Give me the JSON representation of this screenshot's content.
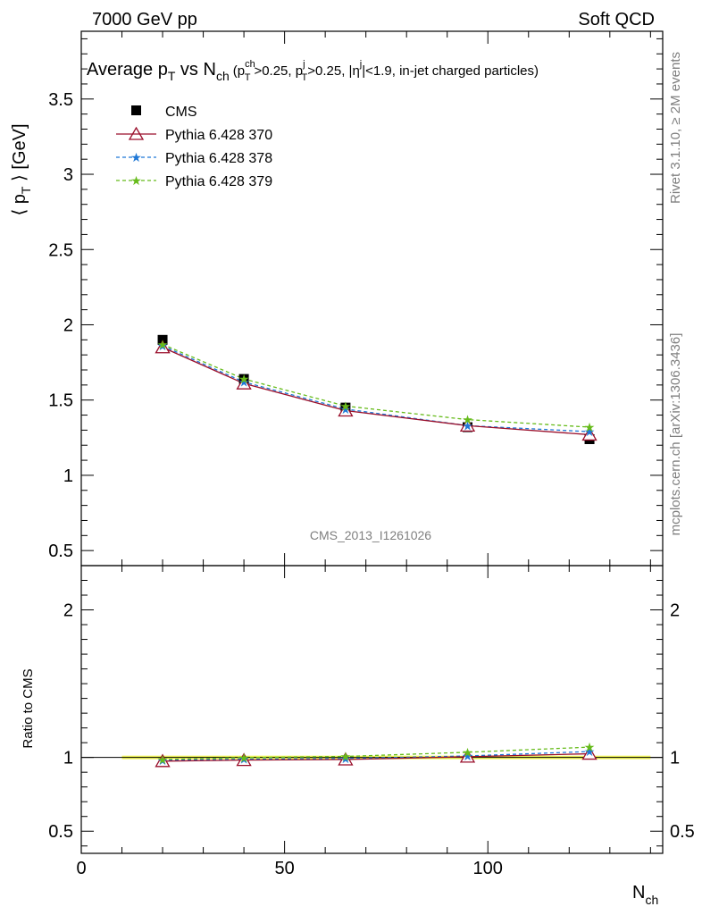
{
  "header": {
    "left": "7000 GeV pp",
    "right": "Soft QCD"
  },
  "side_labels": {
    "rivet": "Rivet 3.1.10, ≥ 2M events",
    "mcplots": "mcplots.cern.ch [arXiv:1306.3436]"
  },
  "watermark": "CMS_2013_I1261026",
  "title": {
    "main": "Average p",
    "main_sub": "T",
    "vs": " vs N",
    "vs_sub": "ch",
    "cuts": "(p",
    "cut1_sup": "ch",
    "cut1_sub": "T",
    "cut1_rest": ">0.25, p",
    "cut2_sup": "j",
    "cut2_sub": "T",
    "cut2_rest": ">0.25, |η",
    "cut3_sup": "j",
    "cut3_rest": "|<1.9, in-jet charged particles)"
  },
  "colors": {
    "cms": "#000000",
    "p370": "#9a0f2b",
    "p378": "#1f78d6",
    "p379": "#66bb1a",
    "band": "#f2f75a"
  },
  "chart_data": [
    {
      "type": "line",
      "xlabel": "N",
      "xlabel_sub": "ch",
      "ylabel": "⟨ p",
      "ylabel_sub": "T",
      "ylabel_rest": " ⟩ [GeV]",
      "xlim": [
        0,
        143
      ],
      "ylim": [
        0.4,
        3.95
      ],
      "x_ticks": [
        0,
        50,
        100
      ],
      "y_ticks": [
        0.5,
        1,
        1.5,
        2,
        2.5,
        3,
        3.5
      ],
      "y_tick_labels": [
        "0.5",
        "1",
        "1.5",
        "2",
        "2.5",
        "3",
        "3.5"
      ],
      "legend_position": "top-left",
      "x": [
        20,
        40,
        65,
        95,
        125
      ],
      "series": [
        {
          "name": "CMS",
          "values": [
            1.9,
            1.64,
            1.45,
            1.32,
            1.24
          ],
          "marker": "square"
        },
        {
          "name": "Pythia 6.428 370",
          "values": [
            1.85,
            1.61,
            1.43,
            1.33,
            1.27
          ],
          "marker": "open-triangle"
        },
        {
          "name": "Pythia 6.428 378",
          "values": [
            1.86,
            1.62,
            1.44,
            1.33,
            1.29
          ],
          "marker": "star"
        },
        {
          "name": "Pythia 6.428 379",
          "values": [
            1.87,
            1.64,
            1.46,
            1.37,
            1.32
          ],
          "marker": "star"
        }
      ]
    },
    {
      "type": "line",
      "ylabel": "Ratio to CMS",
      "xlim": [
        0,
        143
      ],
      "ylim": [
        0.35,
        2.3
      ],
      "y_ticks": [
        0.5,
        1,
        2
      ],
      "y_tick_labels": [
        "0.5",
        "1",
        "2"
      ],
      "x": [
        20,
        40,
        65,
        95,
        125
      ],
      "series": [
        {
          "name": "Pythia 6.428 370",
          "values": [
            0.975,
            0.982,
            0.986,
            1.005,
            1.025
          ]
        },
        {
          "name": "Pythia 6.428 378",
          "values": [
            0.98,
            0.988,
            0.993,
            1.01,
            1.04
          ]
        },
        {
          "name": "Pythia 6.428 379",
          "values": [
            0.985,
            0.999,
            1.007,
            1.035,
            1.07
          ]
        }
      ]
    }
  ]
}
